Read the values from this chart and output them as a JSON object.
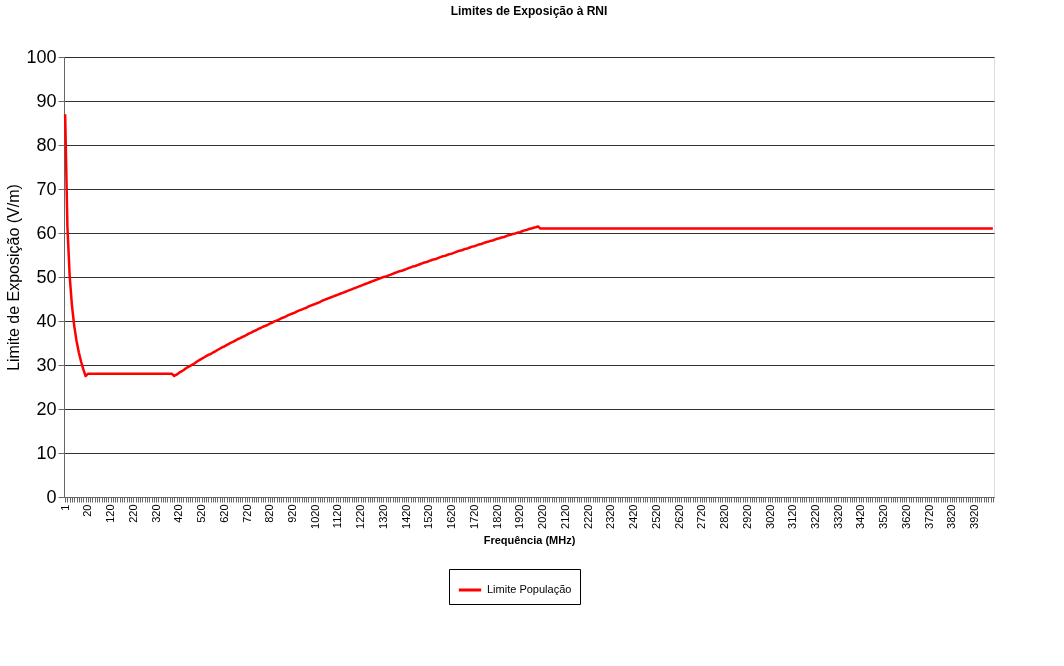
{
  "chart_data": {
    "type": "line",
    "title": "Limites de Exposição à RNI",
    "xlabel": "Frequência  (MHz)",
    "ylabel": "Limite de Exposição (V/m)",
    "categories": [
      "1",
      null,
      null,
      null,
      null,
      null,
      null,
      null,
      null,
      null,
      "20",
      null,
      null,
      null,
      null,
      null,
      null,
      null,
      null,
      null,
      "120",
      null,
      null,
      null,
      null,
      null,
      null,
      null,
      null,
      null,
      "220",
      null,
      null,
      null,
      null,
      null,
      null,
      null,
      null,
      null,
      "320",
      null,
      null,
      null,
      null,
      null,
      null,
      null,
      null,
      null,
      "420",
      null,
      null,
      null,
      null,
      null,
      null,
      null,
      null,
      null,
      "520",
      null,
      null,
      null,
      null,
      null,
      null,
      null,
      null,
      null,
      "620",
      null,
      null,
      null,
      null,
      null,
      null,
      null,
      null,
      null,
      "720",
      null,
      null,
      null,
      null,
      null,
      null,
      null,
      null,
      null,
      "820",
      null,
      null,
      null,
      null,
      null,
      null,
      null,
      null,
      null,
      "920",
      null,
      null,
      null,
      null,
      null,
      null,
      null,
      null,
      null,
      "1020",
      null,
      null,
      null,
      null,
      null,
      null,
      null,
      null,
      null,
      "1120",
      null,
      null,
      null,
      null,
      null,
      null,
      null,
      null,
      null,
      "1220",
      null,
      null,
      null,
      null,
      null,
      null,
      null,
      null,
      null,
      "1320",
      null,
      null,
      null,
      null,
      null,
      null,
      null,
      null,
      null,
      "1420",
      null,
      null,
      null,
      null,
      null,
      null,
      null,
      null,
      null,
      "1520",
      null,
      null,
      null,
      null,
      null,
      null,
      null,
      null,
      null,
      "1620",
      null,
      null,
      null,
      null,
      null,
      null,
      null,
      null,
      null,
      "1720",
      null,
      null,
      null,
      null,
      null,
      null,
      null,
      null,
      null,
      "1820",
      null,
      null,
      null,
      null,
      null,
      null,
      null,
      null,
      null,
      "1920",
      null,
      null,
      null,
      null,
      null,
      null,
      null,
      null,
      null,
      "2020",
      null,
      null,
      null,
      null,
      null,
      null,
      null,
      null,
      null,
      "2120",
      null,
      null,
      null,
      null,
      null,
      null,
      null,
      null,
      null,
      "2220",
      null,
      null,
      null,
      null,
      null,
      null,
      null,
      null,
      null,
      "2320",
      null,
      null,
      null,
      null,
      null,
      null,
      null,
      null,
      null,
      "2420",
      null,
      null,
      null,
      null,
      null,
      null,
      null,
      null,
      null,
      "2520",
      null,
      null,
      null,
      null,
      null,
      null,
      null,
      null,
      null,
      "2620",
      null,
      null,
      null,
      null,
      null,
      null,
      null,
      null,
      null,
      "2720",
      null,
      null,
      null,
      null,
      null,
      null,
      null,
      null,
      null,
      "2820",
      null,
      null,
      null,
      null,
      null,
      null,
      null,
      null,
      null,
      "2920",
      null,
      null,
      null,
      null,
      null,
      null,
      null,
      null,
      null,
      "3020",
      null,
      null,
      null,
      null,
      null,
      null,
      null,
      null,
      null,
      "3120",
      null,
      null,
      null,
      null,
      null,
      null,
      null,
      null,
      null,
      "3220",
      null,
      null,
      null,
      null,
      null,
      null,
      null,
      null,
      null,
      "3320",
      null,
      null,
      null,
      null,
      null,
      null,
      null,
      null,
      null,
      "3420",
      null,
      null,
      null,
      null,
      null,
      null,
      null,
      null,
      null,
      "3520",
      null,
      null,
      null,
      null,
      null,
      null,
      null,
      null,
      null,
      "3620",
      null,
      null,
      null,
      null,
      null,
      null,
      null,
      null,
      null,
      "3720",
      null,
      null,
      null,
      null,
      null,
      null,
      null,
      null,
      null,
      "3820",
      null,
      null,
      null,
      null,
      null,
      null,
      null,
      null,
      null,
      "3920",
      null,
      null,
      null,
      null,
      null,
      null,
      null,
      null
    ],
    "series": [
      {
        "name": "Limite População",
        "color": "#ff0000",
        "values": [
          87,
          61.5,
          50.2,
          43.5,
          38.9,
          35.5,
          32.9,
          30.8,
          29,
          27.5,
          28,
          28,
          28,
          28,
          28,
          28,
          28,
          28,
          28,
          28,
          28,
          28,
          28,
          28,
          28,
          28,
          28,
          28,
          28,
          28,
          28,
          28,
          28,
          28,
          28,
          28,
          28,
          28,
          28,
          28,
          28,
          28,
          28,
          28,
          28,
          28,
          28,
          28,
          27.5,
          27.8,
          28.2,
          28.5,
          28.8,
          29.2,
          29.5,
          29.8,
          30.1,
          30.4,
          30.8,
          31.1,
          31.4,
          31.7,
          32.0,
          32.3,
          32.5,
          32.8,
          33.1,
          33.4,
          33.7,
          34.0,
          34.2,
          34.5,
          34.8,
          35.1,
          35.3,
          35.6,
          35.9,
          36.1,
          36.4,
          36.6,
          36.9,
          37.2,
          37.4,
          37.7,
          37.9,
          38.2,
          38.4,
          38.7,
          38.9,
          39.1,
          39.4,
          39.6,
          39.9,
          40.1,
          40.3,
          40.6,
          40.8,
          41.0,
          41.3,
          41.5,
          41.7,
          41.9,
          42.2,
          42.4,
          42.6,
          42.8,
          43.0,
          43.3,
          43.5,
          43.7,
          43.9,
          44.1,
          44.3,
          44.6,
          44.8,
          45.0,
          45.2,
          45.4,
          45.6,
          45.8,
          46.0,
          46.2,
          46.4,
          46.6,
          46.8,
          47.0,
          47.2,
          47.4,
          47.6,
          47.8,
          48.0,
          48.2,
          48.4,
          48.6,
          48.8,
          49.0,
          49.2,
          49.4,
          49.6,
          49.8,
          50.0,
          50.1,
          50.3,
          50.5,
          50.7,
          50.9,
          51.1,
          51.3,
          51.4,
          51.6,
          51.8,
          52.0,
          52.2,
          52.4,
          52.5,
          52.7,
          52.9,
          53.1,
          53.3,
          53.4,
          53.6,
          53.8,
          54.0,
          54.1,
          54.3,
          54.5,
          54.7,
          54.8,
          55.0,
          55.2,
          55.3,
          55.5,
          55.7,
          55.9,
          56.0,
          56.2,
          56.4,
          56.5,
          56.7,
          56.9,
          57.0,
          57.2,
          57.4,
          57.5,
          57.7,
          57.9,
          58.0,
          58.2,
          58.3,
          58.5,
          58.7,
          58.8,
          59.0,
          59.1,
          59.3,
          59.5,
          59.6,
          59.8,
          59.9,
          60.1,
          60.2,
          60.4,
          60.6,
          60.7,
          60.9,
          61.0,
          61.2,
          61.3,
          61.5,
          61,
          61,
          61,
          61,
          61,
          61,
          61,
          61,
          61,
          61,
          61,
          61,
          61,
          61,
          61,
          61,
          61,
          61,
          61,
          61,
          61,
          61,
          61,
          61,
          61,
          61,
          61,
          61,
          61,
          61,
          61,
          61,
          61,
          61,
          61,
          61,
          61,
          61,
          61,
          61,
          61,
          61,
          61,
          61,
          61,
          61,
          61,
          61,
          61,
          61,
          61,
          61,
          61,
          61,
          61,
          61,
          61,
          61,
          61,
          61,
          61,
          61,
          61,
          61,
          61,
          61,
          61,
          61,
          61,
          61,
          61,
          61,
          61,
          61,
          61,
          61,
          61,
          61,
          61,
          61,
          61,
          61,
          61,
          61,
          61,
          61,
          61,
          61,
          61,
          61,
          61,
          61,
          61,
          61,
          61,
          61,
          61,
          61,
          61,
          61,
          61,
          61,
          61,
          61,
          61,
          61,
          61,
          61,
          61,
          61,
          61,
          61,
          61,
          61,
          61,
          61,
          61,
          61,
          61,
          61,
          61,
          61,
          61,
          61,
          61,
          61,
          61,
          61,
          61,
          61,
          61,
          61,
          61,
          61,
          61,
          61,
          61,
          61,
          61,
          61,
          61,
          61,
          61,
          61,
          61,
          61,
          61,
          61,
          61,
          61,
          61,
          61,
          61,
          61,
          61,
          61,
          61,
          61,
          61,
          61,
          61,
          61,
          61,
          61,
          61,
          61,
          61,
          61,
          61,
          61,
          61,
          61,
          61,
          61,
          61,
          61,
          61,
          61,
          61,
          61,
          61,
          61,
          61,
          61,
          61,
          61,
          61,
          61,
          61,
          61,
          61,
          61,
          61,
          61,
          61,
          61,
          61,
          61,
          61,
          61
        ]
      }
    ],
    "ylim": [
      0,
      100
    ],
    "yticks": [
      0,
      10,
      20,
      30,
      40,
      50,
      60,
      70,
      80,
      90,
      100
    ],
    "grid": "y",
    "legend": "bottom",
    "marker": "none",
    "line_style": "solid"
  }
}
